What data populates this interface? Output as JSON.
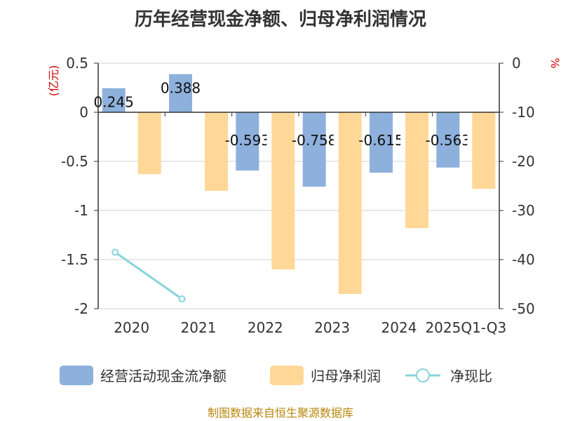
{
  "chart_data": {
    "type": "bar",
    "title": "历年经营现金净额、归母净利润情况",
    "categories": [
      "2020",
      "2021",
      "2022",
      "2023",
      "2024",
      "2025Q1-Q3"
    ],
    "left_axis": {
      "unit": "(亿元)",
      "min": -2,
      "max": 0.5,
      "ticks": [
        "0.5",
        "0",
        "-0.5",
        "-1",
        "-1.5",
        "-2"
      ]
    },
    "right_axis": {
      "unit": "%",
      "min": -50,
      "max": 0,
      "ticks": [
        "0",
        "-10",
        "-20",
        "-30",
        "-40",
        "-50"
      ]
    },
    "series": [
      {
        "name": "经营活动现金流净额",
        "type": "bar",
        "axis": "left",
        "color": "#8eb0dc",
        "values": [
          0.245,
          0.388,
          -0.593,
          -0.758,
          -0.615,
          -0.563
        ],
        "labels": [
          "0.245",
          "0.388",
          "-0.593",
          "-0.758",
          "-0.615",
          "-0.563"
        ]
      },
      {
        "name": "归母净利润",
        "type": "bar",
        "axis": "left",
        "color": "#ffd898",
        "values": [
          -0.63,
          -0.8,
          -1.6,
          -1.85,
          -1.18,
          -0.78
        ]
      },
      {
        "name": "净现比",
        "type": "line",
        "axis": "right",
        "color": "#88d4dc",
        "values": [
          -38.5,
          -48,
          null,
          null,
          null,
          null
        ]
      }
    ],
    "legend": "bottom",
    "grid": true,
    "source": "制图数据来自恒生聚源数据库"
  }
}
